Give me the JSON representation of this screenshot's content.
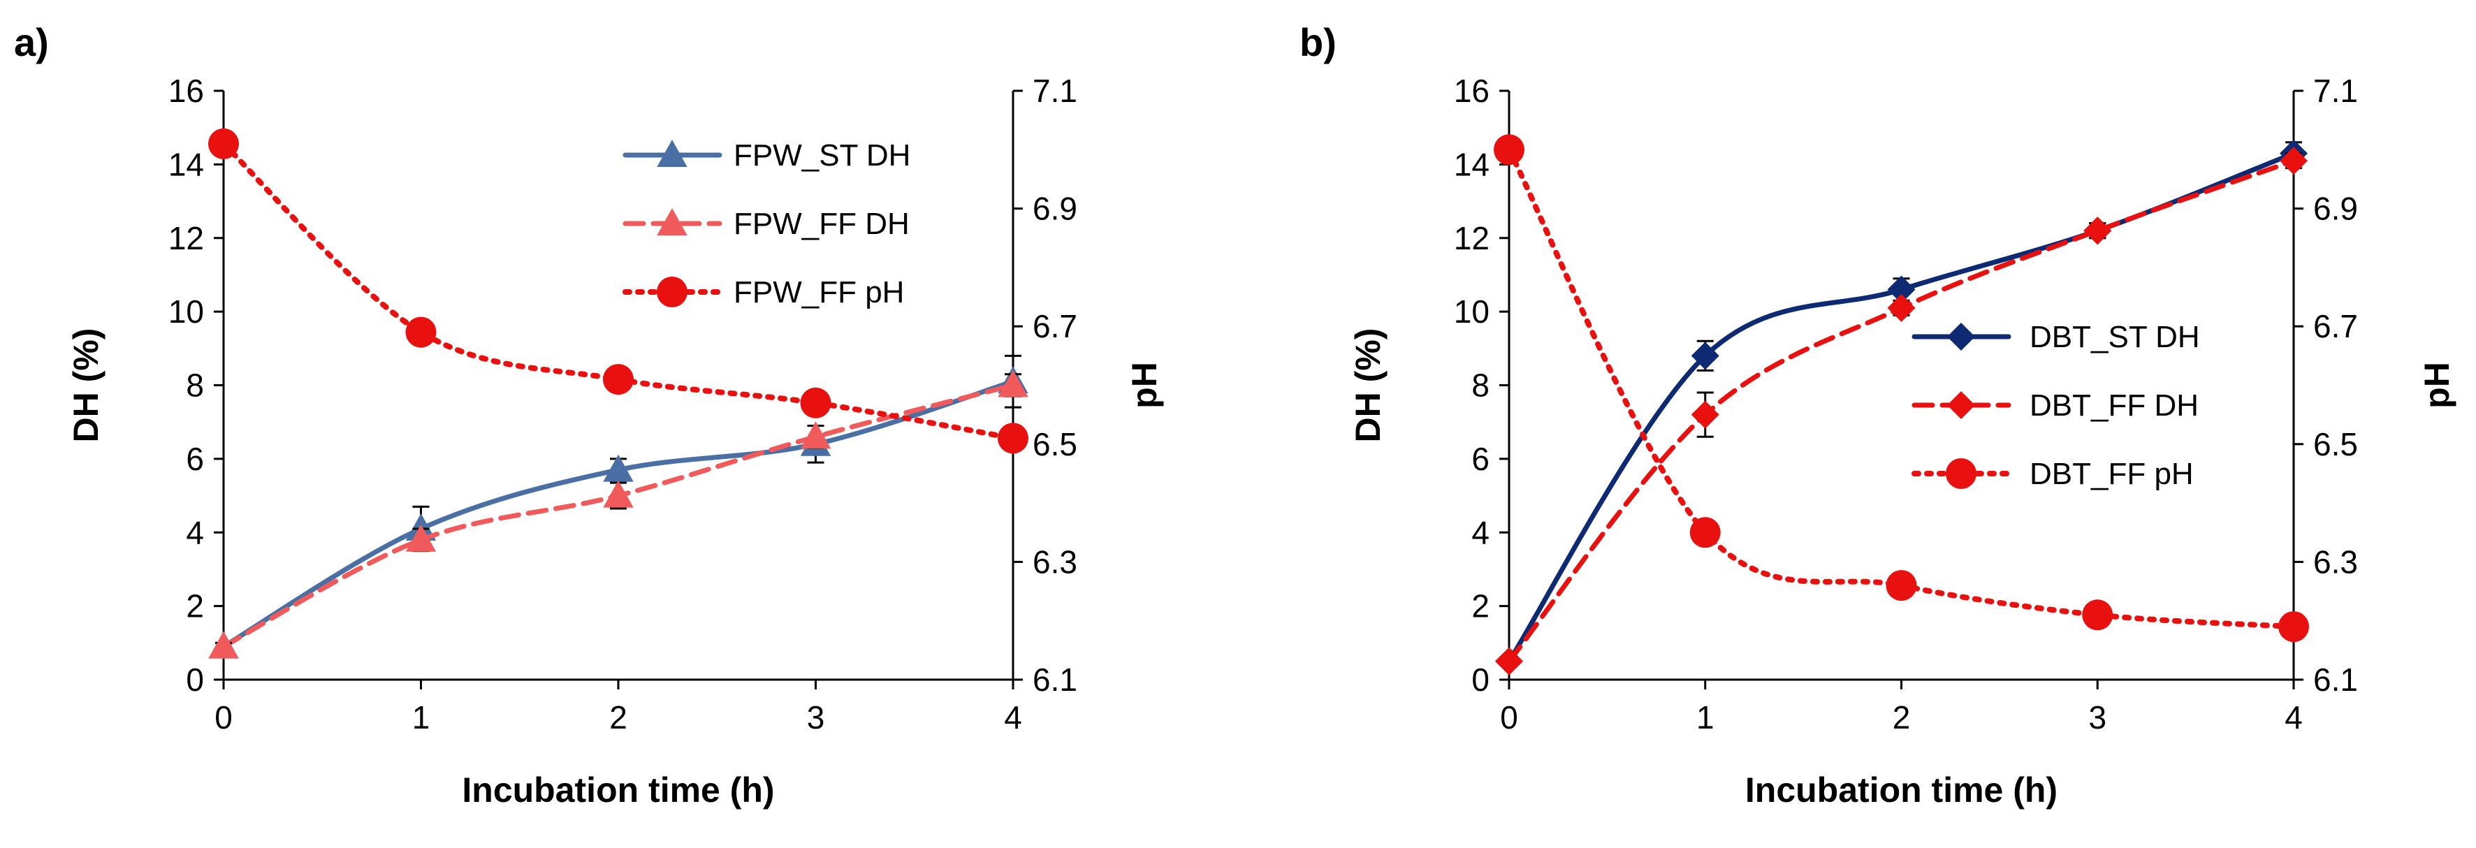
{
  "chart_data": [
    {
      "panel": "a)",
      "type": "line",
      "xlabel": "Incubation time (h)",
      "ylabel": "DH (%)",
      "y2label": "pH",
      "xlim": [
        0,
        4
      ],
      "ylim": [
        0,
        16
      ],
      "y2lim": [
        6.1,
        7.1
      ],
      "xticks": [
        "0",
        "1",
        "2",
        "3",
        "4"
      ],
      "yticks": [
        "0",
        "2",
        "4",
        "6",
        "8",
        "10",
        "12",
        "14",
        "16"
      ],
      "y2ticks": [
        "6.1",
        "6.3",
        "6.5",
        "6.7",
        "6.9",
        "7.1"
      ],
      "x": [
        0,
        1,
        2,
        3,
        4
      ],
      "series": [
        {
          "name": "FPW_ST DH",
          "axis": "left",
          "style": "solid",
          "marker": "triangle",
          "color": "#4a6fa5",
          "values": [
            0.9,
            4.1,
            5.7,
            6.4,
            8.1
          ],
          "err": [
            0.1,
            0.6,
            0.3,
            0.5,
            0.7
          ]
        },
        {
          "name": "FPW_FF DH",
          "axis": "left",
          "style": "dashed",
          "marker": "triangle",
          "color": "#f05a5a",
          "values": [
            0.9,
            3.8,
            5.0,
            6.6,
            8.0
          ],
          "err": [
            0.1,
            0.3,
            0.35,
            0.3,
            0.3
          ]
        },
        {
          "name": "FPW_FF pH",
          "axis": "right",
          "style": "dotted",
          "marker": "circle",
          "color": "#e8110f",
          "values": [
            7.01,
            6.69,
            6.61,
            6.57,
            6.51
          ],
          "err": null
        }
      ]
    },
    {
      "panel": "b)",
      "type": "line",
      "xlabel": "Incubation time (h)",
      "ylabel": "DH (%)",
      "y2label": "pH",
      "xlim": [
        0,
        4
      ],
      "ylim": [
        0,
        16
      ],
      "y2lim": [
        6.1,
        7.1
      ],
      "xticks": [
        "0",
        "1",
        "2",
        "3",
        "4"
      ],
      "yticks": [
        "0",
        "2",
        "4",
        "6",
        "8",
        "10",
        "12",
        "14",
        "16"
      ],
      "y2ticks": [
        "6.1",
        "6.3",
        "6.5",
        "6.7",
        "6.9",
        "7.1"
      ],
      "x": [
        0,
        1,
        2,
        3,
        4
      ],
      "series": [
        {
          "name": "DBT_ST DH",
          "axis": "left",
          "style": "solid",
          "marker": "diamond",
          "color": "#0d2a73",
          "values": [
            0.5,
            8.8,
            10.6,
            12.2,
            14.3
          ],
          "err": [
            0.1,
            0.4,
            0.3,
            0.2,
            0.3
          ]
        },
        {
          "name": "DBT_FF DH",
          "axis": "left",
          "style": "dashed",
          "marker": "diamond",
          "color": "#e8110f",
          "values": [
            0.5,
            7.2,
            10.1,
            12.2,
            14.1
          ],
          "err": [
            0.1,
            0.6,
            0.2,
            0.2,
            0.2
          ]
        },
        {
          "name": "DBT_FF pH",
          "axis": "right",
          "style": "dotted",
          "marker": "circle",
          "color": "#e8110f",
          "values": [
            7.0,
            6.35,
            6.26,
            6.21,
            6.19
          ],
          "err": null
        }
      ]
    }
  ]
}
